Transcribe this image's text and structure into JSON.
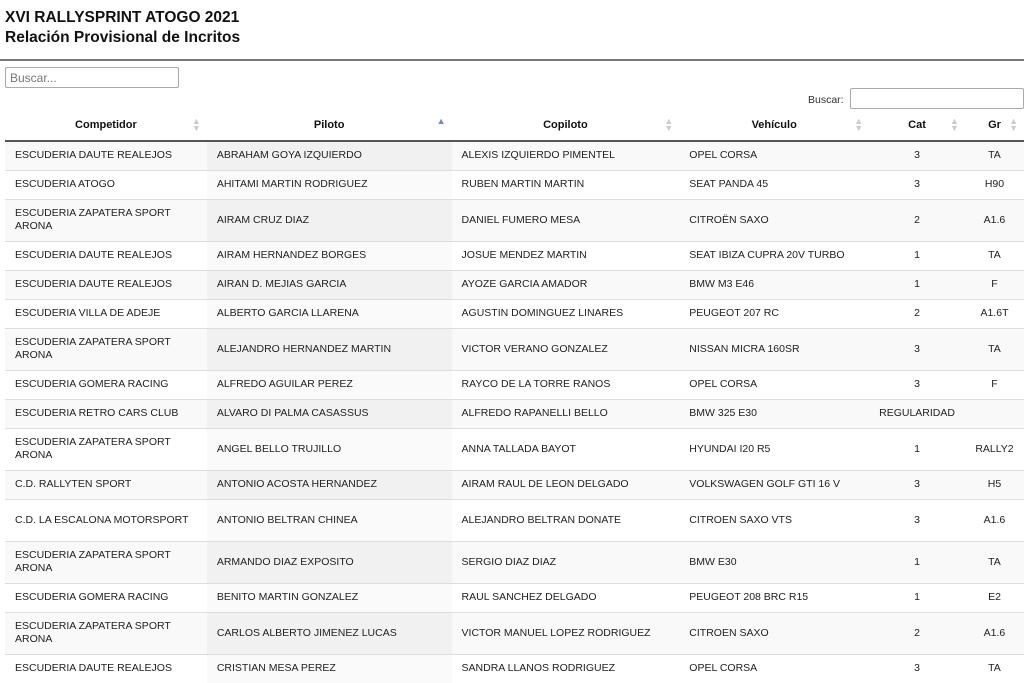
{
  "header": {
    "title": "XVI RALLYSPRINT ATOGO 2021",
    "subtitle": "Relación Provisional de Incritos"
  },
  "search": {
    "placeholder": "Buscar...",
    "label": "Buscar:",
    "value": ""
  },
  "table": {
    "columns": [
      "Competidor",
      "Piloto",
      "Copiloto",
      "Vehículo",
      "Cat",
      "Gr"
    ],
    "sorted_column": "Piloto",
    "sort_direction": "ascending",
    "rows": [
      [
        "ESCUDERIA DAUTE REALEJOS",
        "ABRAHAM GOYA IZQUIERDO",
        "ALEXIS IZQUIERDO PIMENTEL",
        "OPEL CORSA",
        "3",
        "TA"
      ],
      [
        "ESCUDERIA ATOGO",
        "AHITAMI MARTIN RODRIGUEZ",
        "RUBEN MARTIN MARTIN",
        "SEAT PANDA 45",
        "3",
        "H90"
      ],
      [
        "ESCUDERIA ZAPATERA SPORT ARONA",
        "AIRAM CRUZ DIAZ",
        "DANIEL FUMERO MESA",
        "CITROËN SAXO",
        "2",
        "A1.6"
      ],
      [
        "ESCUDERIA DAUTE REALEJOS",
        "AIRAM HERNANDEZ BORGES",
        "JOSUE MENDEZ MARTIN",
        "SEAT IBIZA CUPRA 20V TURBO",
        "1",
        "TA"
      ],
      [
        "ESCUDERIA DAUTE REALEJOS",
        "AIRAN D. MEJIAS GARCIA",
        "AYOZE GARCIA AMADOR",
        "BMW M3 E46",
        "1",
        "F"
      ],
      [
        "ESCUDERIA VILLA DE ADEJE",
        "ALBERTO GARCIA LLARENA",
        "AGUSTIN DOMINGUEZ LINARES",
        "PEUGEOT 207 RC",
        "2",
        "A1.6T"
      ],
      [
        "ESCUDERIA ZAPATERA SPORT ARONA",
        "ALEJANDRO HERNANDEZ MARTIN",
        "VICTOR VERANO GONZALEZ",
        "NISSAN MICRA 160SR",
        "3",
        "TA"
      ],
      [
        "ESCUDERIA GOMERA RACING",
        "ALFREDO AGUILAR PEREZ",
        "RAYCO DE LA TORRE RANOS",
        "OPEL CORSA",
        "3",
        "F"
      ],
      [
        "ESCUDERIA RETRO CARS CLUB",
        "ALVARO DI PALMA CASASSUS",
        "ALFREDO RAPANELLI BELLO",
        "BMW 325 E30",
        "REGULARIDAD",
        ""
      ],
      [
        "ESCUDERIA ZAPATERA SPORT ARONA",
        "ANGEL BELLO TRUJILLO",
        "ANNA TALLADA BAYOT",
        "HYUNDAI I20 R5",
        "1",
        "RALLY2"
      ],
      [
        "C.D. RALLYTEN SPORT",
        "ANTONIO ACOSTA HERNANDEZ",
        "AIRAM RAUL DE LEON DELGADO",
        "VOLKSWAGEN GOLF GTI 16 V",
        "3",
        "H5"
      ],
      [
        "C.D. LA ESCALONA MOTORSPORT",
        "ANTONIO BELTRAN CHINEA",
        "ALEJANDRO BELTRAN DONATE",
        "CITROEN SAXO VTS",
        "3",
        "A1.6"
      ],
      [
        "ESCUDERIA ZAPATERA SPORT ARONA",
        "ARMANDO DIAZ EXPOSITO",
        "SERGIO DIAZ DIAZ",
        "BMW E30",
        "1",
        "TA"
      ],
      [
        "ESCUDERIA GOMERA RACING",
        "BENITO MARTIN GONZALEZ",
        "RAUL SANCHEZ DELGADO",
        "PEUGEOT 208 BRC R15",
        "1",
        "E2"
      ],
      [
        "ESCUDERIA ZAPATERA SPORT ARONA",
        "CARLOS ALBERTO JIMENEZ LUCAS",
        "VICTOR MANUEL LOPEZ RODRIGUEZ",
        "CITROEN SAXO",
        "2",
        "A1.6"
      ],
      [
        "ESCUDERIA DAUTE REALEJOS",
        "CRISTIAN MESA PEREZ",
        "SANDRA LLANOS RODRIGUEZ",
        "OPEL CORSA",
        "3",
        "TA"
      ]
    ]
  }
}
